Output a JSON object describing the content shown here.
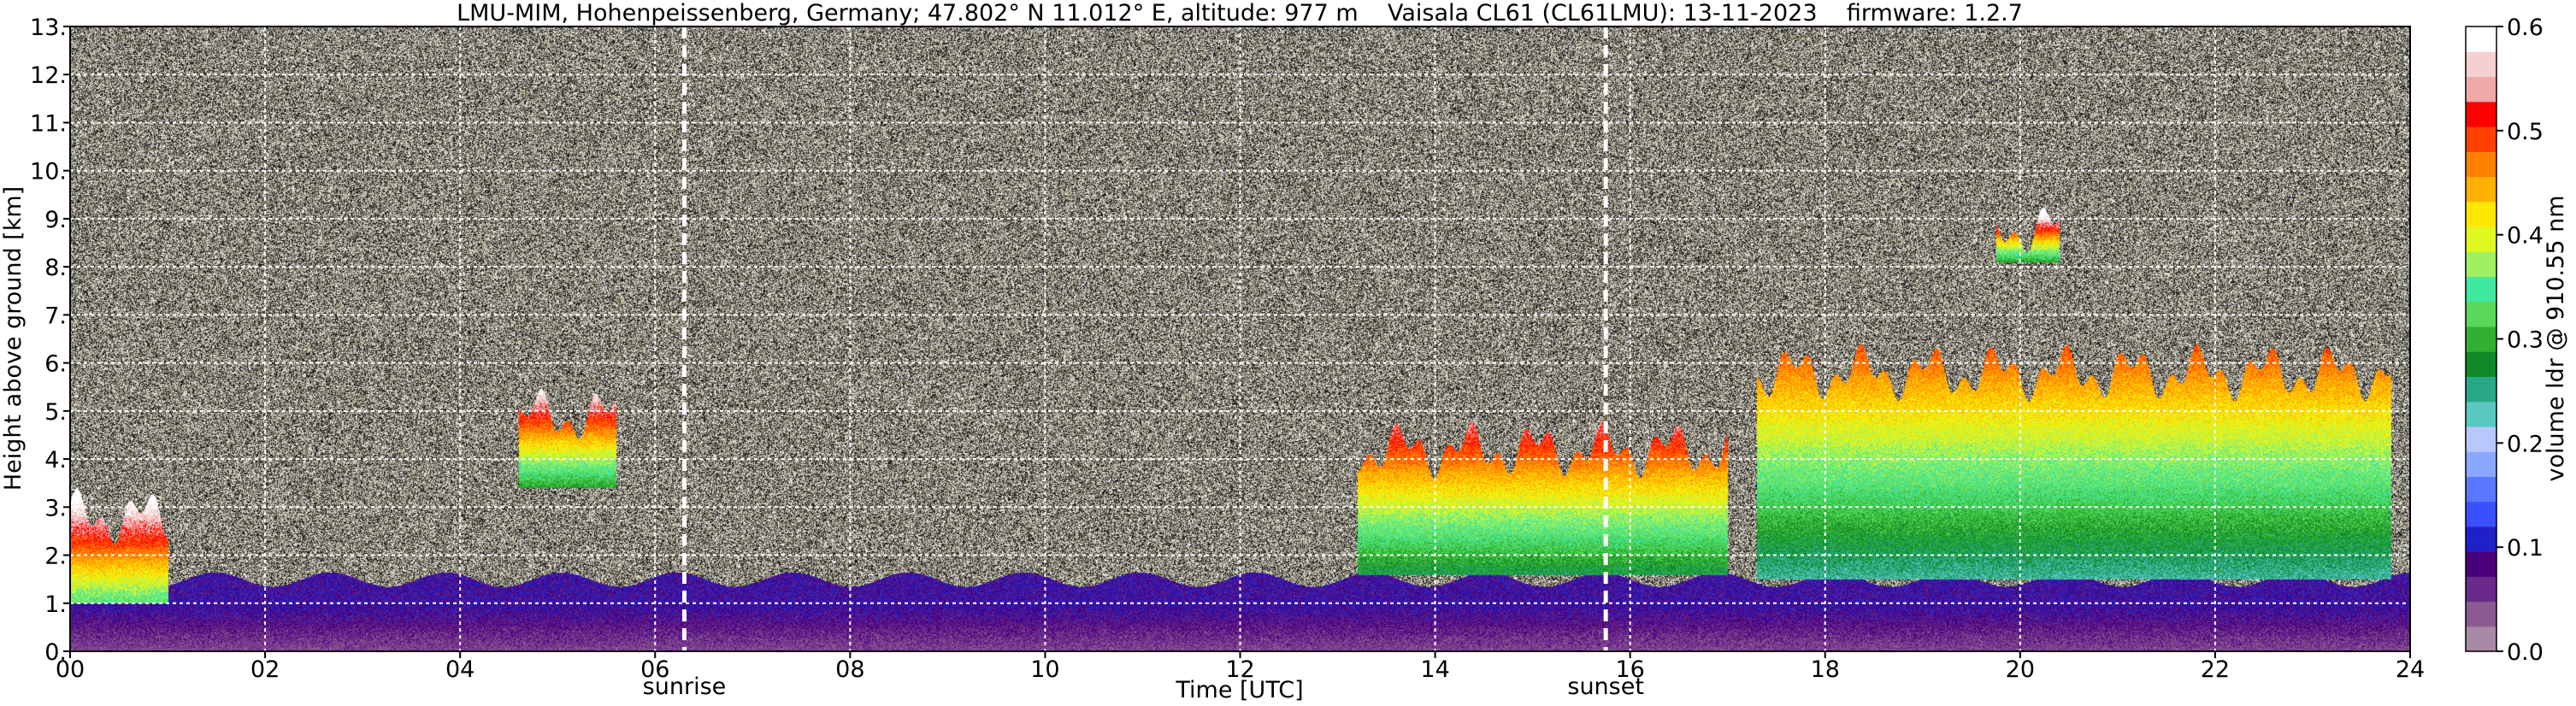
{
  "chart_data": {
    "type": "heatmap",
    "title": "LMU-MIM, Hohenpeissenberg, Germany; 47.802° N 11.012° E, altitude: 977 m    Vaisala CL61 (CL61LMU): 13-11-2023    firmware: 1.2.7",
    "xlabel": "Time [UTC]",
    "ylabel": "Height above ground [km]",
    "xlim": [
      0,
      24
    ],
    "ylim": [
      0,
      13
    ],
    "x_ticks": [
      "00",
      "02",
      "04",
      "06",
      "08",
      "10",
      "12",
      "14",
      "16",
      "18",
      "20",
      "22",
      "24"
    ],
    "y_ticks": [
      "0.",
      "1.",
      "2.",
      "3.",
      "4.",
      "5.",
      "6.",
      "7.",
      "8.",
      "9.",
      "10.",
      "11.",
      "12.",
      "13."
    ],
    "grid": true,
    "colorbar": {
      "label": "volume ldr @ 910.55 nm",
      "range": [
        0.0,
        0.6
      ],
      "ticks": [
        "0.0",
        "0.1",
        "0.2",
        "0.3",
        "0.4",
        "0.5",
        "0.6"
      ],
      "colors": [
        "#a98aa6",
        "#8a5a90",
        "#6a2a8a",
        "#4a007a",
        "#2020c8",
        "#3a50ff",
        "#5a78ff",
        "#8aa8ff",
        "#b8c8ff",
        "#58c8c0",
        "#28a888",
        "#108828",
        "#30b030",
        "#58d858",
        "#40e8a0",
        "#a0f060",
        "#e0f820",
        "#ffe800",
        "#ffb000",
        "#ff8000",
        "#ff4000",
        "#ff0000",
        "#f0a8a8",
        "#f4d0d0",
        "#ffffff"
      ]
    },
    "annotations": [
      {
        "label": "sunrise",
        "x": 6.3
      },
      {
        "label": "sunset",
        "x": 15.75
      }
    ],
    "signal_layers": [
      {
        "name": "boundary layer",
        "x_range": [
          0,
          24
        ],
        "top_km": 1.0,
        "ldr_mean": 0.02
      },
      {
        "name": "morning cloud",
        "x_range": [
          0,
          1.0
        ],
        "top_km": 2.8,
        "ldr_mean": 0.45
      },
      {
        "name": "mid cloud",
        "x_range": [
          4.6,
          5.6
        ],
        "base_km": 3.4,
        "top_km": 4.9,
        "ldr_mean": 0.4
      },
      {
        "name": "afternoon cloud",
        "x_range": [
          13.2,
          17.0
        ],
        "base_km": 1.6,
        "top_km": 4.2,
        "ldr_mean": 0.38
      },
      {
        "name": "evening plumes",
        "x_range": [
          17.3,
          23.8
        ],
        "base_km": 1.5,
        "top_km": 5.8,
        "ldr_mean": 0.35
      },
      {
        "name": "cirrus",
        "x_range": [
          19.75,
          20.4
        ],
        "base_km": 8.1,
        "top_km": 8.8,
        "ldr_mean": 0.4
      }
    ]
  }
}
